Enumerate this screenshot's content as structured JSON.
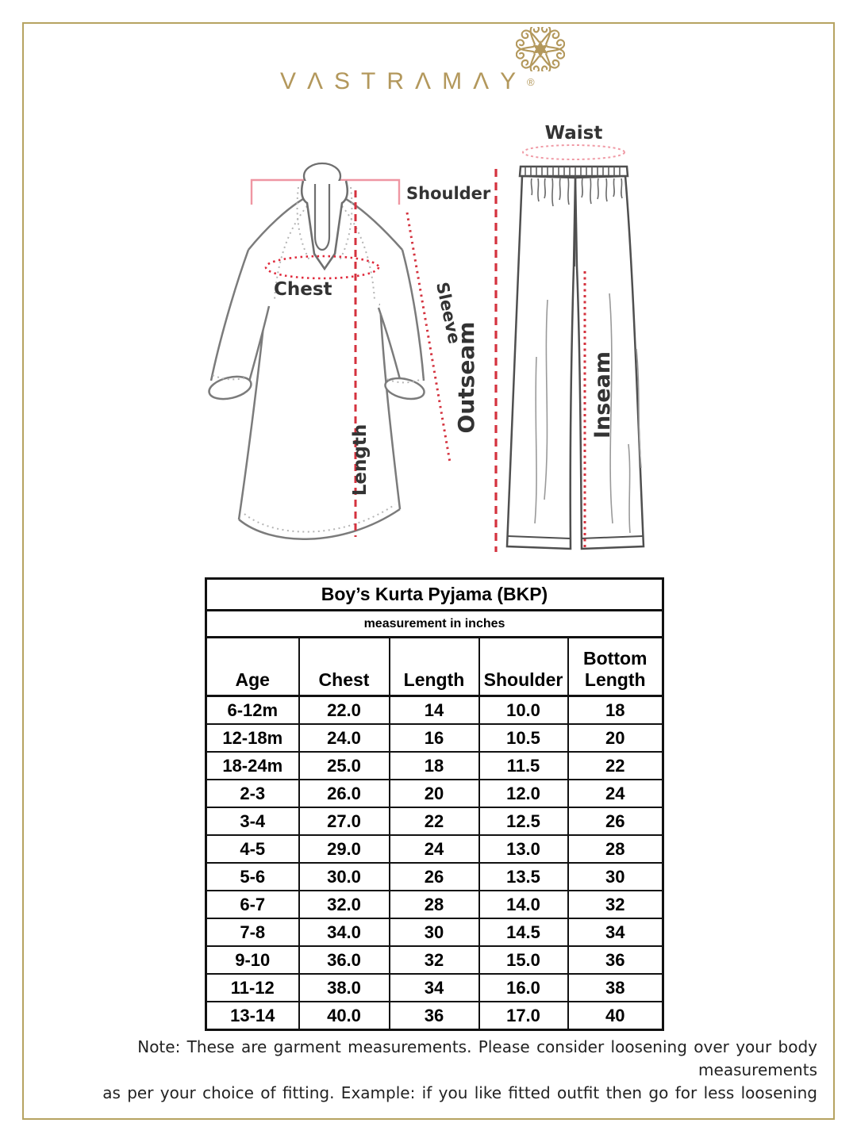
{
  "brand": {
    "name": "VASTRAMAY",
    "display": "VΛSTRΛMΛY",
    "registered_mark": "®",
    "gold_color": "#b3985c"
  },
  "diagram": {
    "kurta": {
      "shoulder_label": "Shoulder",
      "chest_label": "Chest",
      "sleeve_label": "Sleeve",
      "length_label": "Length"
    },
    "pyjama": {
      "waist_label": "Waist",
      "outseam_label": "Outseam",
      "inseam_label": "Inseam"
    },
    "colors": {
      "measure_red": "#d4323e",
      "bracket_pink": "#ef96a2",
      "garment_gray": "#7b7b7b"
    }
  },
  "size_table": {
    "title": "Boy’s Kurta Pyjama (BKP)",
    "subtitle": "measurement in inches",
    "columns": [
      "Age",
      "Chest",
      "Length",
      "Shoulder",
      "Bottom\nLength"
    ],
    "rows": [
      [
        "6-12m",
        "22.0",
        "14",
        "10.0",
        "18"
      ],
      [
        "12-18m",
        "24.0",
        "16",
        "10.5",
        "20"
      ],
      [
        "18-24m",
        "25.0",
        "18",
        "11.5",
        "22"
      ],
      [
        "2-3",
        "26.0",
        "20",
        "12.0",
        "24"
      ],
      [
        "3-4",
        "27.0",
        "22",
        "12.5",
        "26"
      ],
      [
        "4-5",
        "29.0",
        "24",
        "13.0",
        "28"
      ],
      [
        "5-6",
        "30.0",
        "26",
        "13.5",
        "30"
      ],
      [
        "6-7",
        "32.0",
        "28",
        "14.0",
        "32"
      ],
      [
        "7-8",
        "34.0",
        "30",
        "14.5",
        "34"
      ],
      [
        "9-10",
        "36.0",
        "32",
        "15.0",
        "36"
      ],
      [
        "11-12",
        "38.0",
        "34",
        "16.0",
        "38"
      ],
      [
        "13-14",
        "40.0",
        "36",
        "17.0",
        "40"
      ]
    ]
  },
  "note": {
    "line1": "Note: These are garment measurements. Please consider loosening over your body measurements",
    "line2": "as per your choice of fitting. Example: if you like fitted outfit then go for less loosening"
  }
}
